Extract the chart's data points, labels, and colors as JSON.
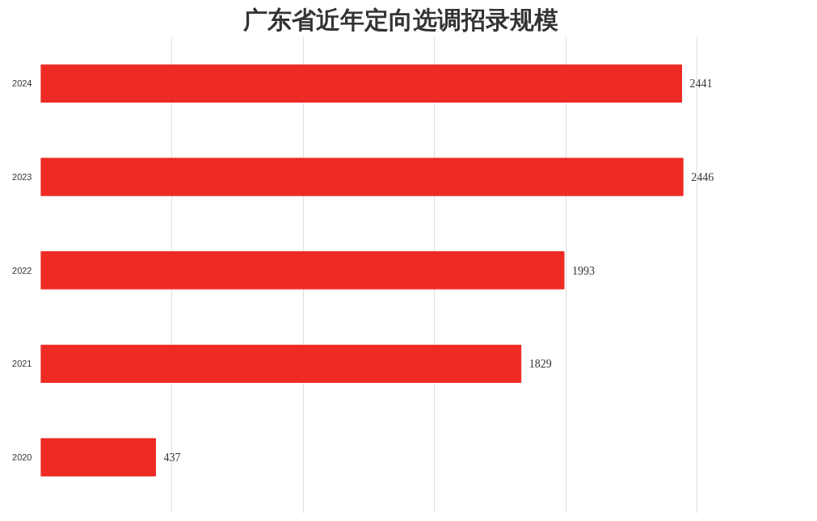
{
  "chart_data": {
    "type": "bar",
    "orientation": "horizontal",
    "title": "广东省近年定向选调招录规模",
    "categories": [
      "2024",
      "2023",
      "2022",
      "2021",
      "2020"
    ],
    "values": [
      2441,
      2446,
      1993,
      1829,
      437
    ],
    "color": "#ee2a24",
    "grid": "x",
    "data_labels": true,
    "tick_labels": "y"
  }
}
